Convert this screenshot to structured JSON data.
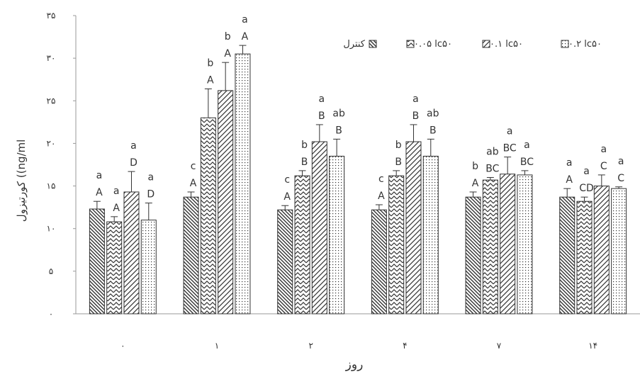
{
  "chart_data": {
    "type": "bar",
    "xlabel": "روز",
    "ylabel": "کورتیزول ((ng/ml",
    "ylim": [
      0,
      35
    ],
    "yticks": [
      "۰",
      "۵",
      "۱۰",
      "۱۵",
      "۲۰",
      "۲۵",
      "۳۰",
      "۳۵"
    ],
    "ytick_values": [
      0,
      5,
      10,
      15,
      20,
      25,
      30,
      35
    ],
    "categories": [
      "۰",
      "۱",
      "۲",
      "۴",
      "۷",
      "۱۴"
    ],
    "grid": false,
    "legend_position": "top-right",
    "series": [
      {
        "name": "کنترل",
        "pattern": "diagonal-back",
        "values": [
          12.3,
          13.7,
          12.2,
          12.2,
          13.7,
          13.7
        ],
        "errors": [
          0.9,
          0.6,
          0.5,
          0.6,
          0.6,
          1.0
        ],
        "labels": [
          "a A",
          "c A",
          "c A",
          "c A",
          "b A",
          "a A"
        ]
      },
      {
        "name": "۰.۰۵ lc۵۰",
        "pattern": "zigzag",
        "values": [
          10.8,
          23.0,
          16.2,
          16.2,
          15.7,
          13.2
        ],
        "errors": [
          0.6,
          3.4,
          0.6,
          0.6,
          0.3,
          0.5
        ],
        "labels": [
          "a A",
          "b A",
          "b B",
          "b B",
          "ab BC",
          "a CD"
        ]
      },
      {
        "name": "۰.۱ lc۵۰",
        "pattern": "diagonal-forward",
        "values": [
          14.3,
          26.2,
          20.2,
          20.2,
          16.4,
          15.0
        ],
        "errors": [
          2.4,
          3.3,
          2.0,
          2.0,
          2.0,
          1.3
        ],
        "labels": [
          "a D",
          "b A",
          "a B",
          "a B",
          "a BC",
          "a C"
        ]
      },
      {
        "name": "۰.۲ lc۵۰",
        "pattern": "dots",
        "values": [
          11.0,
          30.5,
          18.5,
          18.5,
          16.3,
          14.7
        ],
        "errors": [
          2.0,
          1.0,
          2.0,
          2.0,
          0.5,
          0.2
        ],
        "labels": [
          "a D",
          "a A",
          "ab B",
          "ab B",
          "a BC",
          "a C"
        ]
      }
    ]
  }
}
